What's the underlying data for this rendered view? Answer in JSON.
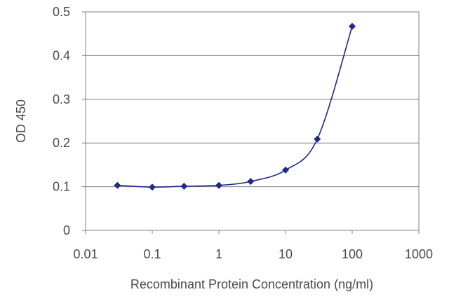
{
  "chart_data": {
    "type": "line",
    "title": "",
    "xlabel": "Recombinant Protein Concentration (ng/ml)",
    "ylabel": "OD 450",
    "xscale": "log",
    "xlim": [
      0.01,
      1000
    ],
    "ylim": [
      0,
      0.5
    ],
    "xticks": [
      0.01,
      0.1,
      1,
      10,
      100,
      1000
    ],
    "xtick_labels": [
      "0.01",
      "0.1",
      "1",
      "10",
      "100",
      "1000"
    ],
    "yticks": [
      0,
      0.1,
      0.2,
      0.3,
      0.4,
      0.5
    ],
    "ytick_labels": [
      "0",
      "0.1",
      "0.2",
      "0.3",
      "0.4",
      "0.5"
    ],
    "grid": "horizontal",
    "legend": "none",
    "colors": {
      "series": "#1f2a8a",
      "grid": "#7f7f7f",
      "frame": "#7f7f7f",
      "background": "#ffffff",
      "text": "#4a4a4a"
    },
    "series": [
      {
        "marker": "diamond",
        "x": [
          0.03,
          0.1,
          0.3,
          1,
          3,
          10,
          30,
          100
        ],
        "y": [
          0.103,
          0.099,
          0.101,
          0.103,
          0.112,
          0.138,
          0.209,
          0.467
        ]
      }
    ]
  }
}
